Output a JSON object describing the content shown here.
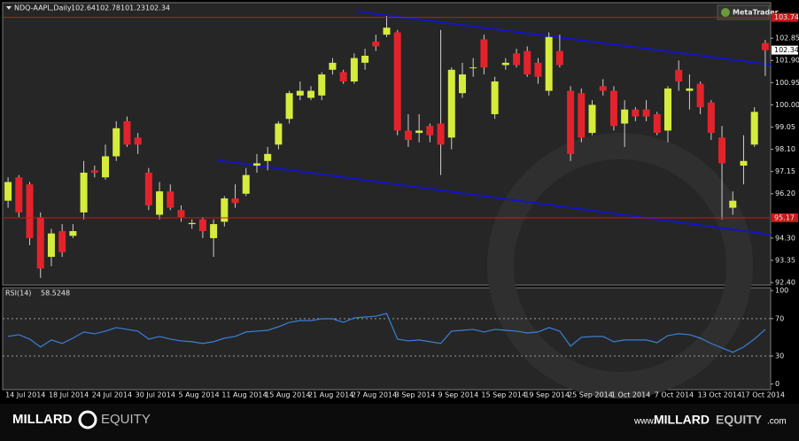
{
  "chart_data": [
    {
      "type": "candlestick",
      "title": "NDQ-AAPL,Daily",
      "up_color": "#d6ec3c",
      "down_color": "#e3232b",
      "wick_color": "#cfcfcf",
      "level_color": "#c81818",
      "x": [
        "14 Jul 2014",
        null,
        null,
        null,
        "18 Jul 2014",
        null,
        null,
        null,
        "24 Jul 2014",
        null,
        null,
        null,
        "30 Jul 2014",
        null,
        null,
        null,
        "5 Aug 2014",
        null,
        null,
        null,
        "11 Aug 2014",
        null,
        null,
        null,
        "15 Aug 2014",
        null,
        null,
        null,
        "21 Aug 2014",
        null,
        null,
        null,
        "27 Aug 2014",
        null,
        null,
        null,
        "3 Sep 2014",
        null,
        null,
        null,
        "9 Sep 2014",
        null,
        null,
        null,
        "15 Sep 2014",
        null,
        null,
        null,
        "19 Sep 2014",
        null,
        null,
        null,
        "25 Sep 2014",
        null,
        null,
        null,
        "1 Oct 2014",
        null,
        null,
        null,
        "7 Oct 2014",
        null,
        null,
        null,
        "13 Oct 2014",
        null,
        null,
        null,
        "17 Oct 2014",
        null,
        null
      ],
      "open": [
        95.9,
        96.9,
        96.6,
        95.2,
        93.5,
        94.6,
        94.4,
        95.4,
        97.2,
        96.9,
        97.8,
        99.3,
        98.6,
        97.1,
        95.3,
        96.3,
        95.5,
        94.9,
        95.1,
        94.3,
        95.0,
        96.0,
        96.2,
        97.4,
        97.6,
        98.3,
        99.4,
        100.4,
        100.3,
        100.4,
        101.5,
        101.4,
        101.0,
        101.8,
        102.7,
        103.0,
        103.1,
        98.9,
        98.8,
        99.1,
        99.2,
        98.6,
        100.5,
        101.6,
        102.8,
        99.6,
        101.7,
        102.2,
        102.3,
        101.8,
        100.6,
        102.3,
        100.6,
        100.5,
        98.8,
        100.8,
        100.6,
        99.2,
        99.8,
        99.8,
        99.6,
        98.9,
        101.5,
        100.6,
        100.9,
        100.1,
        98.6,
        95.6,
        97.4,
        98.3,
        102.64
      ],
      "high": [
        96.9,
        97.0,
        96.7,
        95.4,
        94.7,
        94.9,
        94.9,
        97.6,
        97.4,
        98.3,
        99.3,
        99.5,
        98.8,
        97.3,
        96.7,
        96.6,
        95.7,
        95.1,
        95.2,
        95.1,
        96.1,
        96.6,
        97.3,
        97.9,
        98.2,
        99.3,
        100.6,
        101.0,
        100.8,
        101.4,
        102.0,
        101.5,
        102.2,
        102.4,
        103.0,
        103.8,
        103.2,
        99.6,
        99.6,
        99.2,
        103.2,
        101.6,
        101.8,
        102.0,
        103.0,
        101.2,
        102.0,
        102.4,
        102.5,
        102.0,
        103.1,
        103.0,
        100.8,
        100.7,
        100.2,
        101.1,
        100.8,
        100.2,
        99.9,
        100.2,
        99.7,
        100.8,
        101.9,
        101.3,
        101.0,
        100.2,
        99.1,
        96.3,
        98.7,
        99.9,
        102.78
      ],
      "low": [
        95.6,
        95.2,
        94.0,
        92.6,
        93.1,
        93.5,
        94.3,
        95.1,
        96.9,
        96.8,
        97.6,
        98.2,
        97.9,
        95.5,
        95.1,
        95.5,
        95.0,
        94.7,
        94.3,
        93.5,
        94.8,
        95.6,
        96.1,
        97.1,
        97.2,
        98.1,
        99.2,
        100.2,
        100.2,
        100.2,
        101.3,
        100.9,
        100.9,
        101.5,
        102.3,
        102.9,
        98.7,
        98.2,
        98.4,
        98.4,
        97.0,
        98.1,
        100.3,
        101.2,
        101.3,
        99.4,
        101.5,
        101.6,
        101.2,
        100.9,
        100.4,
        101.6,
        97.6,
        98.4,
        98.7,
        100.4,
        98.9,
        98.2,
        99.3,
        99.3,
        98.7,
        98.4,
        100.6,
        99.8,
        99.6,
        98.5,
        95.1,
        95.3,
        96.6,
        98.2,
        101.23
      ],
      "close": [
        96.7,
        95.4,
        94.3,
        93.0,
        94.5,
        93.7,
        94.6,
        97.1,
        97.1,
        97.8,
        99.0,
        98.3,
        98.3,
        95.7,
        96.3,
        95.6,
        95.2,
        94.95,
        94.6,
        94.9,
        96.0,
        95.8,
        97.0,
        97.5,
        97.9,
        99.2,
        100.5,
        100.6,
        100.6,
        101.3,
        101.8,
        101.0,
        102.0,
        102.1,
        102.5,
        103.3,
        98.9,
        98.5,
        98.9,
        98.7,
        98.3,
        101.5,
        101.3,
        101.6,
        101.6,
        101.0,
        101.8,
        101.7,
        101.3,
        101.2,
        102.9,
        101.7,
        97.9,
        98.6,
        100.0,
        100.6,
        99.1,
        99.8,
        99.5,
        99.5,
        98.8,
        100.7,
        101.0,
        100.7,
        99.9,
        98.8,
        97.5,
        95.9,
        97.6,
        99.7,
        102.34
      ],
      "ylim": [
        92.29,
        104.37
      ],
      "yticks": [
        102.85,
        {
          "value": 101.9,
          "label": "101.90"
        },
        100.95,
        {
          "value": 100,
          "label": "100.00"
        },
        99.05,
        {
          "value": 98.1,
          "label": "98.10"
        },
        97.15,
        {
          "value": 96.2,
          "label": "96.20"
        },
        {
          "value": 94.3,
          "label": "94.30"
        },
        93.35,
        {
          "value": 92.4,
          "label": "92.40"
        }
      ],
      "levels": [
        103.74,
        95.17
      ]
    },
    {
      "type": "line",
      "name": "RSI(14)",
      "color": "#3a7fd8",
      "values": [
        51.0,
        52.8,
        48.1,
        39.6,
        47.2,
        43.4,
        49.1,
        55.7,
        53.8,
        56.6,
        60.4,
        58.5,
        56.6,
        48.1,
        50.9,
        48.1,
        46.2,
        45.3,
        43.4,
        45.3,
        49.1,
        50.9,
        55.7,
        56.6,
        57.5,
        61.3,
        66.0,
        67.9,
        67.9,
        69.8,
        69.8,
        66.0,
        70.8,
        71.7,
        72.6,
        75.5,
        48.1,
        46.2,
        47.2,
        45.3,
        43.4,
        56.6,
        57.5,
        58.5,
        55.7,
        58.5,
        57.5,
        56.6,
        54.7,
        55.7,
        60.4,
        56.6,
        40.6,
        50.0,
        50.9,
        50.9,
        45.3,
        47.2,
        47.2,
        47.2,
        44.3,
        51.9,
        53.8,
        52.8,
        49.1,
        43.4,
        38.7,
        34.0,
        39.6,
        48.1,
        58.5248
      ],
      "ylim": [
        -6,
        103
      ],
      "yticks": [
        100,
        70,
        30,
        0
      ],
      "levels": [
        70,
        30
      ]
    }
  ],
  "badge": "MetaTrader",
  "footer": {
    "brand": [
      "MILLARD",
      "EQUITY"
    ],
    "url": [
      "www.",
      "MILLARD",
      "EQUITY",
      ".com"
    ]
  }
}
